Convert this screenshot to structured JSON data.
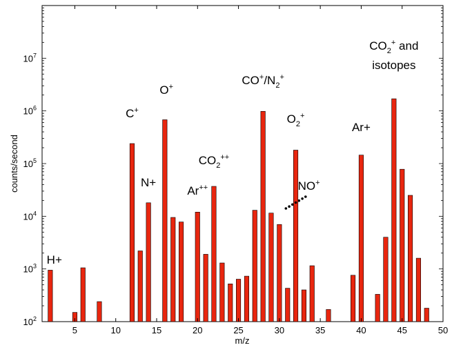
{
  "chart_data": {
    "type": "bar",
    "title": "",
    "xlabel": "m/z",
    "ylabel": "counts/second",
    "xlim": [
      1,
      50
    ],
    "ylim": [
      100,
      100000000
    ],
    "yscale": "log",
    "grid": false,
    "bar_color": "#e8260f",
    "x_ticks": [
      "5",
      "10",
      "15",
      "20",
      "25",
      "30",
      "35",
      "40",
      "45",
      "50"
    ],
    "y_ticks": [
      {
        "base": "10",
        "exp": "2"
      },
      {
        "base": "10",
        "exp": "3"
      },
      {
        "base": "10",
        "exp": "4"
      },
      {
        "base": "10",
        "exp": "5"
      },
      {
        "base": "10",
        "exp": "6"
      },
      {
        "base": "10",
        "exp": "7"
      }
    ],
    "series": [
      {
        "x": [
          2,
          5,
          6,
          8,
          12,
          13,
          14,
          16,
          17,
          18,
          20,
          21,
          22,
          23,
          24,
          25,
          26,
          27,
          28,
          29,
          30,
          31,
          32,
          33,
          34,
          36,
          39,
          40,
          42,
          43,
          44,
          45,
          46,
          47,
          48
        ],
        "values": [
          950,
          150,
          1050,
          240,
          240000,
          2200,
          18000,
          680000,
          9500,
          7800,
          12000,
          1900,
          37000,
          1300,
          520,
          640,
          730,
          13000,
          980000,
          11500,
          7000,
          430,
          180000,
          400,
          1150,
          170,
          760,
          145000,
          330,
          4000,
          1700000,
          78000,
          25000,
          1600,
          180
        ]
      }
    ],
    "annotations": [
      {
        "text": "H+",
        "x": 2.5
      },
      {
        "text": "C",
        "sup": "+",
        "x": 12
      },
      {
        "text": "N+",
        "x": 14
      },
      {
        "text": "O",
        "sup": "+",
        "x": 16.2
      },
      {
        "text": "Ar",
        "sup": "++",
        "x": 20
      },
      {
        "text": "CO",
        "sub": "2",
        "sup": "++",
        "x": 22
      },
      {
        "text": "CO",
        "sup": "+",
        "mid": "/N",
        "sub": "2",
        "sup2": "+",
        "x": 28
      },
      {
        "text": "O",
        "sub": "2",
        "sup": "+",
        "x": 32
      },
      {
        "text": "NO",
        "sup": "+",
        "x": 33.6
      },
      {
        "text": "Ar+",
        "x": 40
      },
      {
        "text": "CO",
        "sub": "2",
        "sup": "+",
        "tail": " and",
        "x": 44
      },
      {
        "text": "isotopes",
        "x": 44
      }
    ]
  }
}
